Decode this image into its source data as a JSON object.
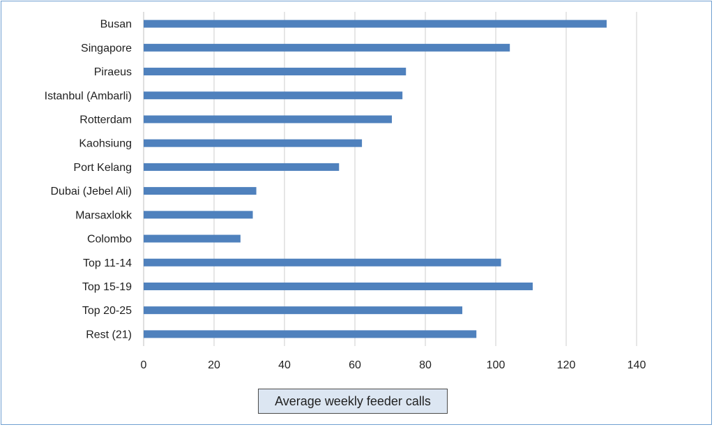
{
  "chart_data": {
    "type": "bar",
    "orientation": "horizontal",
    "categories": [
      "Busan",
      "Singapore",
      "Piraeus",
      "Istanbul (Ambarli)",
      "Rotterdam",
      "Kaohsiung",
      "Port Kelang",
      "Dubai (Jebel Ali)",
      "Marsaxlokk",
      "Colombo",
      "Top 11-14",
      "Top 15-19",
      "Top 20-25",
      "Rest (21)"
    ],
    "values": [
      131.5,
      104,
      74.5,
      73.5,
      70.5,
      62,
      55.5,
      32,
      31,
      27.5,
      101.5,
      110.5,
      90.5,
      94.5
    ],
    "xlabel": "Average weekly feeder calls",
    "xlim": [
      0,
      140
    ],
    "xticks": [
      0,
      20,
      40,
      60,
      80,
      100,
      120,
      140
    ],
    "grid": "vertical",
    "legend": "none",
    "bar_color": "#4f81bd"
  }
}
